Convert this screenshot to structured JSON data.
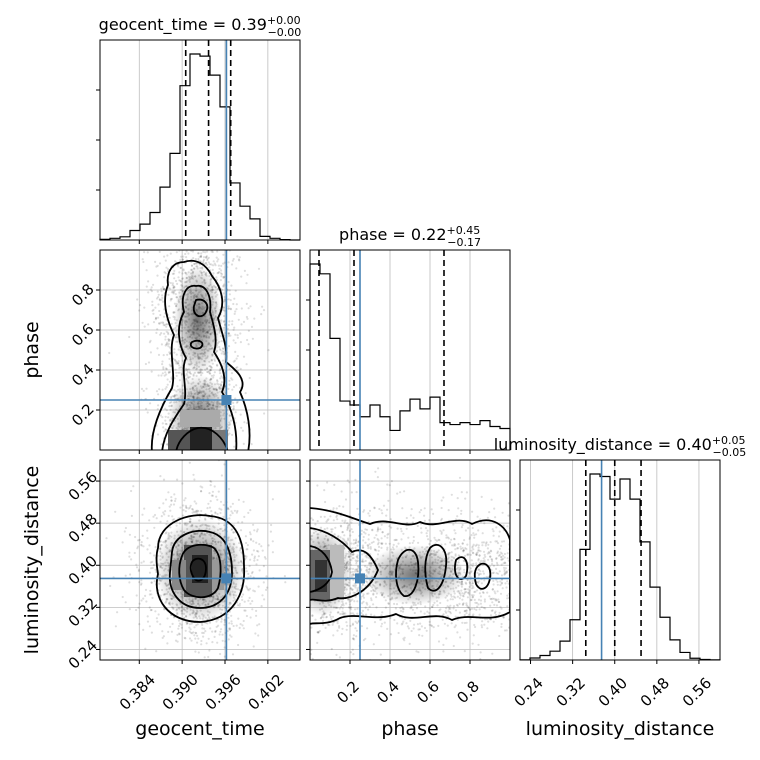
{
  "chart_data": {
    "type": "corner",
    "parameters": [
      {
        "name": "geocent_time",
        "range": [
          0.3785,
          0.4065
        ],
        "ticks": [
          0.384,
          0.39,
          0.396,
          0.402
        ],
        "tick_labels": [
          "0.384",
          "0.390",
          "0.396",
          "0.402"
        ],
        "title": {
          "main": "geocent_time = 0.39",
          "upper": "+0.00",
          "lower": "−0.00"
        },
        "quantiles": [
          0.3905,
          0.3937,
          0.3968
        ],
        "truth": 0.3962,
        "hist_edges": [
          0.3785,
          0.3799,
          0.3813,
          0.3827,
          0.3841,
          0.3855,
          0.3869,
          0.3883,
          0.3897,
          0.3911,
          0.3925,
          0.3939,
          0.3953,
          0.3967,
          0.3981,
          0.3995,
          0.4009,
          0.4023,
          0.4037,
          0.4051,
          0.4065
        ],
        "hist_counts": [
          0.3,
          0.8,
          1.5,
          4.5,
          7.5,
          13,
          25,
          41,
          73,
          88,
          87,
          78,
          63,
          27,
          16,
          10,
          1.7,
          0.8,
          0.2,
          0
        ]
      },
      {
        "name": "phase",
        "range": [
          0.0,
          1.0
        ],
        "ticks": [
          0.2,
          0.4,
          0.6,
          0.8
        ],
        "tick_labels": [
          "0.2",
          "0.4",
          "0.6",
          "0.8"
        ],
        "title": {
          "main": "phase = 0.22",
          "upper": "+0.45",
          "lower": "−0.17"
        },
        "quantiles": [
          0.045,
          0.22,
          0.67
        ],
        "truth": 0.25,
        "hist_edges": [
          0.0,
          0.05,
          0.1,
          0.15,
          0.2,
          0.25,
          0.3,
          0.35,
          0.4,
          0.45,
          0.5,
          0.55,
          0.6,
          0.65,
          0.7,
          0.75,
          0.8,
          0.85,
          0.9,
          0.95,
          1.0
        ],
        "hist_counts": [
          0.95,
          0.9,
          0.57,
          0.25,
          0.23,
          0.17,
          0.23,
          0.17,
          0.1,
          0.2,
          0.26,
          0.21,
          0.27,
          0.14,
          0.13,
          0.14,
          0.13,
          0.15,
          0.12,
          0.11
        ]
      },
      {
        "name": "luminosity_distance",
        "range": [
          0.22,
          0.6
        ],
        "ticks": [
          0.24,
          0.32,
          0.4,
          0.48,
          0.56
        ],
        "tick_labels": [
          "0.24",
          "0.32",
          "0.40",
          "0.48",
          "0.56"
        ],
        "title": {
          "main": "luminosity_distance = 0.40",
          "upper": "+0.05",
          "lower": "−0.05"
        },
        "quantiles": [
          0.345,
          0.4,
          0.45
        ],
        "truth": 0.375,
        "hist_edges": [
          0.22,
          0.239,
          0.258,
          0.277,
          0.296,
          0.315,
          0.334,
          0.353,
          0.372,
          0.391,
          0.41,
          0.429,
          0.448,
          0.467,
          0.486,
          0.505,
          0.524,
          0.543,
          0.562,
          0.581,
          0.6
        ],
        "hist_counts": [
          0.05,
          0.8,
          1.8,
          3.5,
          7.5,
          16,
          44,
          74,
          73,
          64,
          72,
          64,
          47,
          29,
          17,
          8,
          3,
          0.7,
          0.2,
          0.05
        ]
      }
    ],
    "truth_color": "#4682b4",
    "grid": true
  }
}
